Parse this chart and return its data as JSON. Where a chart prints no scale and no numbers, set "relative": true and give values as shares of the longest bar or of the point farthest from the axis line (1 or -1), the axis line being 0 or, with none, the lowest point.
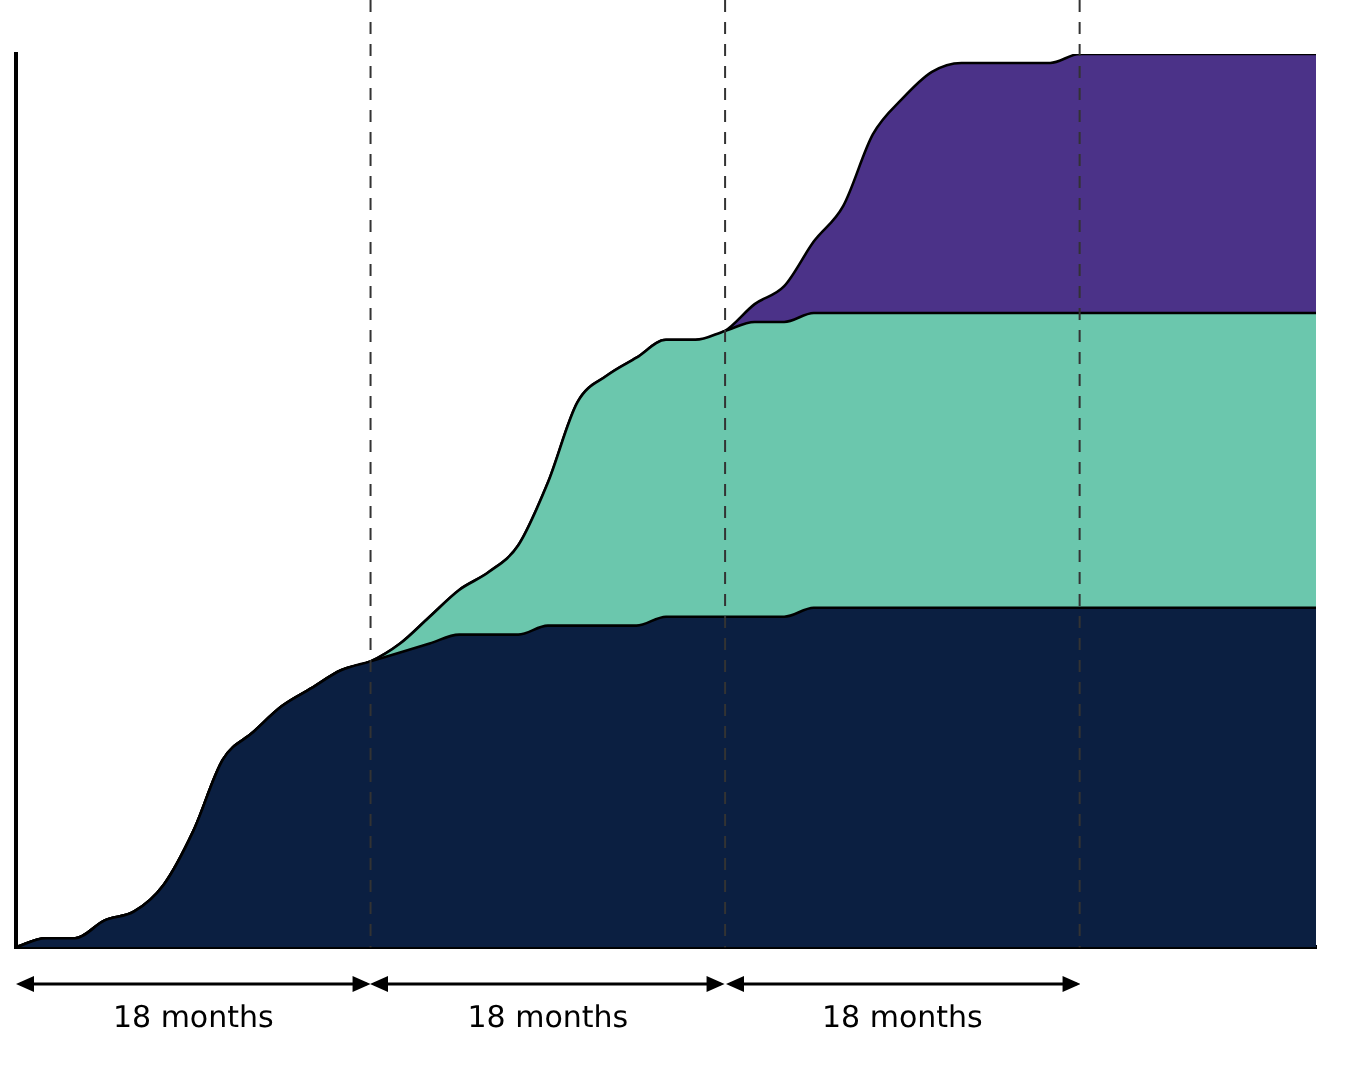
{
  "chart_data": {
    "type": "area",
    "stacked": true,
    "relative": true,
    "grid": "x",
    "legend": false,
    "marker": "none",
    "categories": [
      null,
      null,
      null,
      null,
      null,
      null,
      null,
      null,
      null,
      null,
      null,
      null,
      null,
      null,
      null,
      null,
      null,
      null,
      null,
      null,
      null,
      null,
      null,
      null,
      null,
      null,
      null,
      null,
      null,
      null,
      null,
      null,
      null,
      null,
      null,
      null,
      null,
      null,
      null,
      null,
      null,
      null,
      null,
      null,
      null
    ],
    "series": [
      {
        "color": "#0b1f41",
        "values": [
          0,
          0.01,
          0.01,
          0.03,
          0.04,
          0.07,
          0.13,
          0.21,
          0.24,
          0.27,
          0.29,
          0.31,
          0.32,
          0.33,
          0.34,
          0.35,
          0.35,
          0.35,
          0.36,
          0.36,
          0.36,
          0.36,
          0.37,
          0.37,
          0.37,
          0.37,
          0.37,
          0.38,
          0.38,
          0.38,
          0.38,
          0.38,
          0.38,
          0.38,
          0.38,
          0.38,
          0.38,
          0.38,
          0.38,
          0.38,
          0.38,
          0.38,
          0.38,
          0.38,
          0.38
        ]
      },
      {
        "color": "#6bc7ad",
        "values": [
          0,
          0,
          0,
          0,
          0,
          0,
          0,
          0,
          0,
          0,
          0,
          0,
          0,
          0.01,
          0.03,
          0.05,
          0.07,
          0.1,
          0.16,
          0.25,
          0.28,
          0.3,
          0.31,
          0.31,
          0.32,
          0.33,
          0.33,
          0.33,
          0.33,
          0.33,
          0.33,
          0.33,
          0.33,
          0.33,
          0.33,
          0.33,
          0.33,
          0.33,
          0.33,
          0.33,
          0.33,
          0.33,
          0.33,
          0.33,
          0.33
        ]
      },
      {
        "color": "#4b3288",
        "values": [
          0,
          0,
          0,
          0,
          0,
          0,
          0,
          0,
          0,
          0,
          0,
          0,
          0,
          0,
          0,
          0,
          0,
          0,
          0,
          0,
          0,
          0,
          0,
          0,
          0,
          0.02,
          0.04,
          0.08,
          0.12,
          0.2,
          0.24,
          0.27,
          0.28,
          0.28,
          0.28,
          0.28,
          0.29,
          0.29,
          0.29,
          0.29,
          0.29,
          0.29,
          0.29,
          0.29,
          0.29
        ]
      }
    ],
    "annotations": [
      "18 months",
      "18 months",
      "18 months"
    ]
  }
}
